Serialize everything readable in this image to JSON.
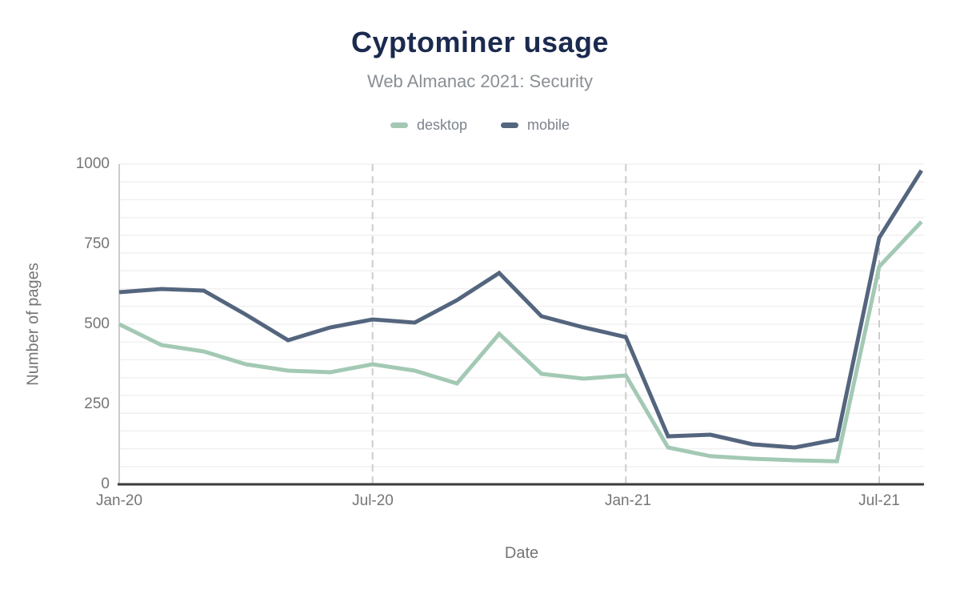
{
  "chart_data": {
    "type": "line",
    "title": "Cyptominer usage",
    "subtitle": "Web Almanac 2021: Security",
    "xlabel": "Date",
    "ylabel": "Number of pages",
    "ylim": [
      0,
      1000
    ],
    "grid": {
      "horizontal_minor_divisions": 18,
      "vertical_gridlines": "dashed",
      "legend_position": "top"
    },
    "categories": [
      "Jan-20",
      "Feb-20",
      "Mar-20",
      "Apr-20",
      "May-20",
      "Jun-20",
      "Jul-20",
      "Aug-20",
      "Sep-20",
      "Oct-20",
      "Nov-20",
      "Dec-20",
      "Jan-21",
      "Feb-21",
      "Mar-21",
      "Apr-21",
      "May-21",
      "Jun-21",
      "Jul-21",
      "Aug-21"
    ],
    "series": [
      {
        "name": "desktop",
        "color": "#a3c9b4",
        "values": [
          500,
          435,
          415,
          375,
          355,
          350,
          375,
          355,
          315,
          470,
          345,
          330,
          340,
          115,
          88,
          80,
          75,
          72,
          680,
          820
        ]
      },
      {
        "name": "mobile",
        "color": "#54657e",
        "values": [
          600,
          610,
          605,
          530,
          450,
          490,
          515,
          505,
          575,
          660,
          525,
          490,
          460,
          150,
          155,
          125,
          115,
          140,
          770,
          980
        ]
      }
    ],
    "ytick_labels": [
      "1000",
      "750",
      "500",
      "250",
      "0"
    ],
    "xticks": [
      {
        "label": "Jan-20",
        "index": 0
      },
      {
        "label": "Jul-20",
        "index": 6
      },
      {
        "label": "Jan-21",
        "index": 12
      },
      {
        "label": "Jul-21",
        "index": 18
      }
    ],
    "colors": {
      "title": "#1b2a4e",
      "subtitle": "#8a8f94",
      "axis_text": "#757575",
      "baseline": "#3b3b3b",
      "gridline_minor": "#f1f1f1",
      "gridline_vertical": "#cccccc"
    }
  }
}
